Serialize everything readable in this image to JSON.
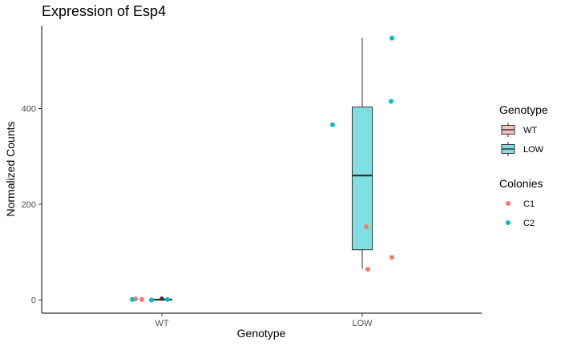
{
  "chart_data": {
    "type": "box",
    "title": "Expression of Esp4",
    "xlabel": "Genotype",
    "ylabel": "Normalized Counts",
    "categories": [
      "WT",
      "LOW"
    ],
    "ylim": [
      -28,
      572
    ],
    "yticks": [
      0,
      200,
      400
    ],
    "grid": false,
    "legend_position": "right",
    "boxes": [
      {
        "category": "WT",
        "group": "WT",
        "fill": "#F8C0BA",
        "min": 0,
        "q1": 0,
        "median": 0.5,
        "q3": 1.5,
        "max": 2.5,
        "outliers": [
          3
        ]
      },
      {
        "category": "LOW",
        "group": "LOW",
        "fill": "#80DFE2",
        "min": 65,
        "q1": 105,
        "median": 260,
        "q3": 403,
        "max": 548,
        "outliers": []
      }
    ],
    "points": [
      {
        "category": "WT",
        "colony": "C1",
        "y": 2
      },
      {
        "category": "WT",
        "colony": "C1",
        "y": 1
      },
      {
        "category": "WT",
        "colony": "C2",
        "y": 1
      },
      {
        "category": "WT",
        "colony": "C2",
        "y": 0
      },
      {
        "category": "WT",
        "colony": "C2",
        "y": 1
      },
      {
        "category": "LOW",
        "colony": "C2",
        "y": 366
      },
      {
        "category": "LOW",
        "colony": "C1",
        "y": 153
      },
      {
        "category": "LOW",
        "colony": "C1",
        "y": 64
      },
      {
        "category": "LOW",
        "colony": "C2",
        "y": 547
      },
      {
        "category": "LOW",
        "colony": "C2",
        "y": 415
      },
      {
        "category": "LOW",
        "colony": "C1",
        "y": 89
      }
    ],
    "legends": [
      {
        "title": "Genotype",
        "kind": "box",
        "items": [
          {
            "label": "WT",
            "color": "#F8C0BA"
          },
          {
            "label": "LOW",
            "color": "#80DFE2"
          }
        ]
      },
      {
        "title": "Colonies",
        "kind": "point",
        "items": [
          {
            "label": "C1",
            "color": "#F8766D"
          },
          {
            "label": "C2",
            "color": "#00BFC4"
          }
        ]
      }
    ]
  }
}
